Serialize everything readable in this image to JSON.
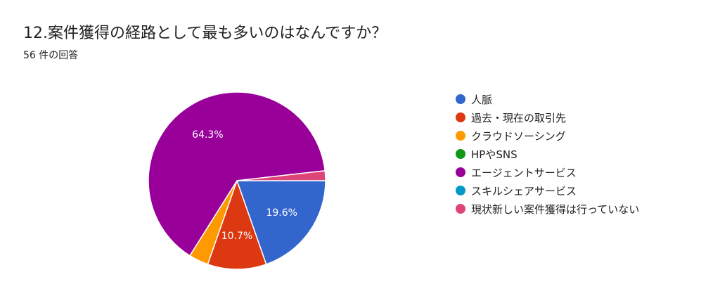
{
  "header": {
    "title": "12.案件獲得の経路として最も多いのはなんですか？",
    "response_count": "56 件の回答"
  },
  "chart_data": {
    "type": "pie",
    "categories": [
      "人脈",
      "過去・現在の取引先",
      "クラウドソーシング",
      "HPやSNS",
      "エージェントサービス",
      "スキルシェアサービス",
      "現状新しい案件獲得は行っていない"
    ],
    "values": [
      11,
      6,
      2,
      0,
      36,
      0,
      1
    ],
    "percent_labels": [
      "19.6%",
      "10.7%",
      "",
      "",
      "64.3%",
      "",
      ""
    ],
    "colors": [
      "#3366cc",
      "#dc3912",
      "#ff9900",
      "#109618",
      "#990099",
      "#0099c6",
      "#dd4477"
    ],
    "legend_position": "right"
  }
}
